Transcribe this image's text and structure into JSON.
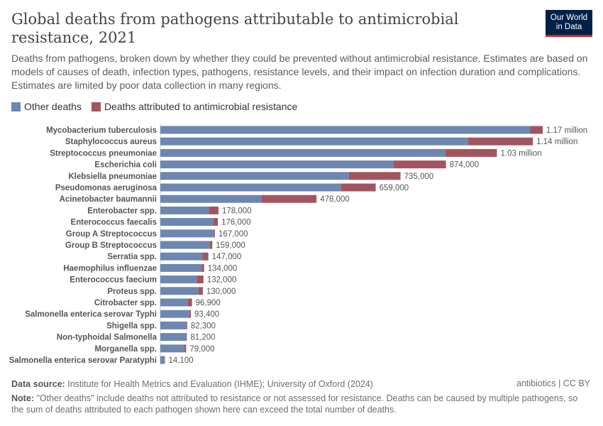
{
  "header": {
    "title": "Global deaths from pathogens attributable to antimicrobial resistance, 2021",
    "subtitle": "Deaths from pathogens, broken down by whether they could be prevented without antimicrobial resistance. Estimates are based on models of causes of death, infection types, pathogens, resistance levels, and their impact on infection duration and complications. Estimates are limited by poor data collection in many regions.",
    "logo_line1": "Our World",
    "logo_line2": "in Data"
  },
  "colors": {
    "other": "#6d87b1",
    "amr": "#a2555e"
  },
  "chart_data": {
    "type": "bar",
    "orientation": "horizontal",
    "stacked": true,
    "legend_position": "top-left",
    "grid": false,
    "categories": [
      "Mycobacterium tuberculosis",
      "Staphylococcus aureus",
      "Streptococcus pneumoniae",
      "Escherichia coli",
      "Klebsiella pneumoniae",
      "Pseudomonas aeruginosa",
      "Acinetobacter baumannii",
      "Enterobacter spp.",
      "Enterococcus faecalis",
      "Group A Streptococcus",
      "Group B Streptococcus",
      "Serratia spp.",
      "Haemophilus influenzae",
      "Enterococcus faecium",
      "Proteus spp.",
      "Citrobacter spp.",
      "Salmonella enterica serovar Typhi",
      "Shigella spp.",
      "Non-typhoidal Salmonella",
      "Morganella spp.",
      "Salmonella enterica serovar Paratyphi"
    ],
    "series": [
      {
        "name": "Other deaths",
        "values": [
          1132000,
          942000,
          872000,
          714000,
          577000,
          553000,
          309000,
          148000,
          162000,
          165000,
          152000,
          129000,
          127000,
          111000,
          117000,
          84000,
          88400,
          79700,
          80200,
          73000,
          12400
        ]
      },
      {
        "name": "Deaths attributed to antimicrobial resistance",
        "values": [
          38000,
          198000,
          158000,
          160000,
          158000,
          106000,
          169000,
          30000,
          14000,
          2000,
          7000,
          18000,
          7000,
          21000,
          13000,
          12900,
          5000,
          2600,
          1000,
          6000,
          1700
        ]
      }
    ],
    "totals": [
      1170000,
      1140000,
      1030000,
      874000,
      735000,
      659000,
      478000,
      178000,
      176000,
      167000,
      159000,
      147000,
      134000,
      132000,
      130000,
      96900,
      93400,
      82300,
      81200,
      79000,
      14100
    ],
    "total_labels": [
      "1.17 million",
      "1.14 million",
      "1.03 million",
      "874,000",
      "735,000",
      "659,000",
      "478,000",
      "178,000",
      "176,000",
      "167,000",
      "159,000",
      "147,000",
      "134,000",
      "132,000",
      "130,000",
      "96,900",
      "93,400",
      "82,300",
      "81,200",
      "79,000",
      "14,100"
    ]
  },
  "footer": {
    "source_label": "Data source:",
    "source": "Institute for Health Metrics and Evaluation (IHME); University of Oxford (2024)",
    "license": "antibiotics | CC BY",
    "note_label": "Note:",
    "note": "\"Other deaths\" include deaths not attributed to resistance or not assessed for resistance. Deaths can be caused by multiple pathogens, so the sum of deaths attributed to each pathogen shown here can exceed the total number of deaths."
  }
}
